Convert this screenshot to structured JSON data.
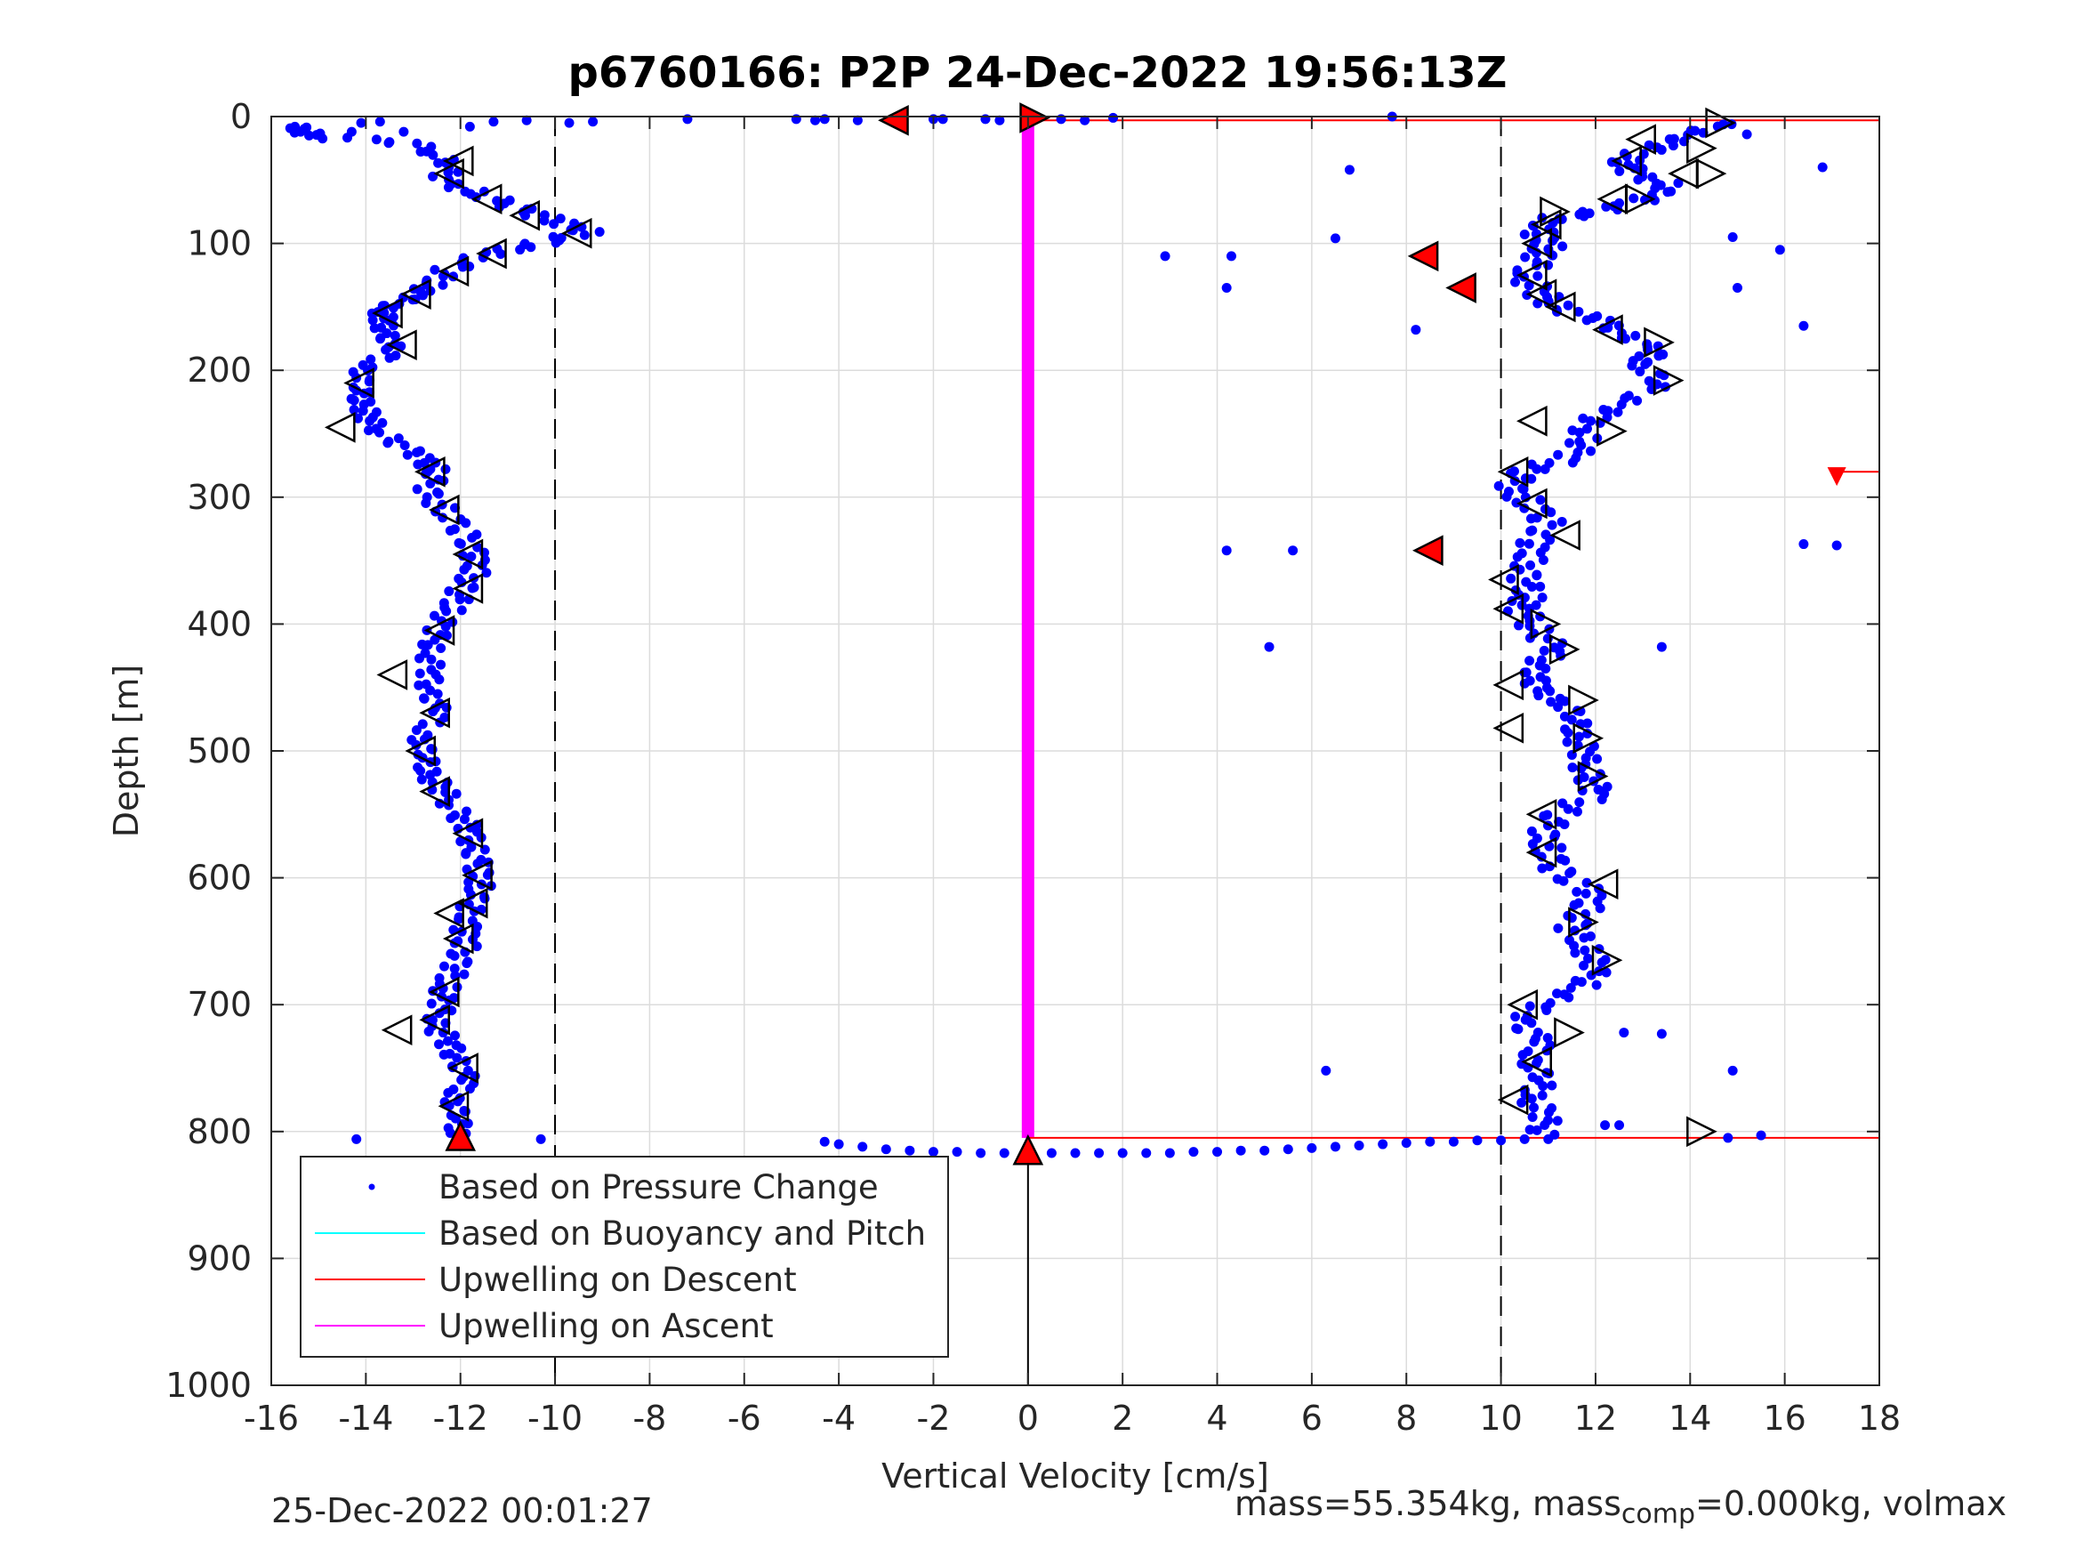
{
  "figure": {
    "title": "p6760166: P2P 24-Dec-2022 19:56:13Z",
    "footer_left": "25-Dec-2022 00:01:27",
    "footer_right": {
      "part1": "mass=55.354kg, mass",
      "sub": "comp",
      "part2": "=0.000kg, volmax"
    }
  },
  "chart_data": {
    "type": "scatter",
    "xlabel": "Vertical Velocity [cm/s]",
    "ylabel": "Depth [m]",
    "xlim": [
      -16,
      18
    ],
    "ylim": [
      0,
      1000
    ],
    "y_reversed": true,
    "xticks": [
      -16,
      -14,
      -12,
      -10,
      -8,
      -6,
      -4,
      -2,
      0,
      2,
      4,
      6,
      8,
      10,
      12,
      14,
      16,
      18
    ],
    "yticks": [
      0,
      100,
      200,
      300,
      400,
      500,
      600,
      700,
      800,
      900,
      1000
    ],
    "grid": true,
    "legend_position": "bottom-left",
    "legend": [
      {
        "label": "Based on Pressure Change",
        "color": "#0000ff",
        "style": "dot"
      },
      {
        "label": "Based on Buoyancy and Pitch",
        "color": "#00ffff",
        "style": "line"
      },
      {
        "label": "Upwelling on Descent",
        "color": "#ff0000",
        "style": "line"
      },
      {
        "label": "Upwelling on Ascent",
        "color": "#ff00ff",
        "style": "line"
      }
    ],
    "reference_lines": {
      "dashed_vertical_x": [
        -10,
        10
      ],
      "solid_vertical": {
        "x": 0,
        "y": [
          805,
          1000
        ]
      }
    },
    "series": [
      {
        "name": "Based on Pressure Change",
        "color": "#0000ff",
        "descent_profile": [
          [
            -15.6,
            8
          ],
          [
            -15,
            15
          ],
          [
            -13,
            22
          ],
          [
            -12.2,
            35
          ],
          [
            -12.4,
            50
          ],
          [
            -11.6,
            62
          ],
          [
            -10.8,
            72
          ],
          [
            -10,
            82
          ],
          [
            -9.3,
            92
          ],
          [
            -10.4,
            100
          ],
          [
            -11.4,
            108
          ],
          [
            -12.3,
            122
          ],
          [
            -12.6,
            132
          ],
          [
            -13,
            142
          ],
          [
            -13.6,
            152
          ],
          [
            -13.7,
            160
          ],
          [
            -13.5,
            172
          ],
          [
            -13.5,
            185
          ],
          [
            -14,
            200
          ],
          [
            -14.2,
            215
          ],
          [
            -14,
            228
          ],
          [
            -14,
            240
          ],
          [
            -13.4,
            255
          ],
          [
            -12.8,
            270
          ],
          [
            -12.5,
            280
          ],
          [
            -12.7,
            295
          ],
          [
            -12.3,
            312
          ],
          [
            -11.9,
            330
          ],
          [
            -11.7,
            345
          ],
          [
            -11.7,
            360
          ],
          [
            -12,
            375
          ],
          [
            -12.2,
            388
          ],
          [
            -12.5,
            405
          ],
          [
            -12.6,
            420
          ],
          [
            -12.7,
            438
          ],
          [
            -12.6,
            455
          ],
          [
            -12.5,
            470
          ],
          [
            -12.8,
            490
          ],
          [
            -12.8,
            505
          ],
          [
            -12.6,
            520
          ],
          [
            -12.4,
            532
          ],
          [
            -12,
            550
          ],
          [
            -11.8,
            565
          ],
          [
            -11.7,
            580
          ],
          [
            -11.6,
            595
          ],
          [
            -11.6,
            610
          ],
          [
            -11.8,
            625
          ],
          [
            -11.9,
            640
          ],
          [
            -11.9,
            655
          ],
          [
            -12.1,
            670
          ],
          [
            -12.3,
            685
          ],
          [
            -12.4,
            700
          ],
          [
            -12.5,
            715
          ],
          [
            -12.3,
            730
          ],
          [
            -12,
            745
          ],
          [
            -11.9,
            760
          ],
          [
            -12.1,
            775
          ],
          [
            -12.1,
            790
          ],
          [
            -12,
            805
          ]
        ],
        "ascent_profile": [
          [
            14.7,
            5
          ],
          [
            14,
            15
          ],
          [
            13.2,
            25
          ],
          [
            12.6,
            35
          ],
          [
            12.8,
            45
          ],
          [
            13.6,
            55
          ],
          [
            13,
            65
          ],
          [
            12,
            75
          ],
          [
            11,
            82
          ],
          [
            10.8,
            92
          ],
          [
            11,
            102
          ],
          [
            10.8,
            112
          ],
          [
            10.5,
            125
          ],
          [
            10.8,
            140
          ],
          [
            11.2,
            150
          ],
          [
            12,
            160
          ],
          [
            12.7,
            172
          ],
          [
            13.2,
            185
          ],
          [
            13,
            195
          ],
          [
            13.3,
            210
          ],
          [
            12.6,
            228
          ],
          [
            11.8,
            240
          ],
          [
            11.8,
            255
          ],
          [
            11.4,
            270
          ],
          [
            10.5,
            280
          ],
          [
            10.2,
            292
          ],
          [
            10.6,
            305
          ],
          [
            11,
            320
          ],
          [
            10.7,
            335
          ],
          [
            10.6,
            350
          ],
          [
            10.5,
            365
          ],
          [
            10.6,
            378
          ],
          [
            10.4,
            390
          ],
          [
            10.8,
            405
          ],
          [
            11.1,
            420
          ],
          [
            10.8,
            435
          ],
          [
            10.6,
            448
          ],
          [
            11.3,
            460
          ],
          [
            11.5,
            475
          ],
          [
            11.7,
            490
          ],
          [
            11.7,
            505
          ],
          [
            11.9,
            520
          ],
          [
            12,
            535
          ],
          [
            11.2,
            550
          ],
          [
            10.9,
            565
          ],
          [
            11,
            580
          ],
          [
            11.2,
            595
          ],
          [
            11.9,
            610
          ],
          [
            11.8,
            625
          ],
          [
            11.5,
            640
          ],
          [
            11.8,
            655
          ],
          [
            12,
            670
          ],
          [
            11.8,
            685
          ],
          [
            10.8,
            700
          ],
          [
            10.5,
            715
          ],
          [
            10.8,
            730
          ],
          [
            10.7,
            745
          ],
          [
            10.8,
            760
          ],
          [
            10.7,
            775
          ],
          [
            10.9,
            790
          ],
          [
            10.9,
            805
          ]
        ],
        "surface_points": [
          [
            -15.5,
            8
          ],
          [
            -15.2,
            15
          ],
          [
            -14.3,
            12
          ],
          [
            -14.1,
            5
          ],
          [
            -13.7,
            4
          ],
          [
            -13.2,
            12
          ],
          [
            -11.8,
            8
          ],
          [
            -11.3,
            4
          ],
          [
            -10.6,
            3
          ],
          [
            -9.7,
            5
          ],
          [
            -9.2,
            4
          ],
          [
            -7.2,
            2
          ],
          [
            -4.9,
            2
          ],
          [
            -4.5,
            3
          ],
          [
            -4.3,
            2
          ],
          [
            -3.6,
            3
          ],
          [
            -2,
            2
          ],
          [
            -1.8,
            2
          ],
          [
            -0.9,
            2
          ],
          [
            -0.6,
            3
          ],
          [
            0.7,
            2
          ],
          [
            1.2,
            3
          ],
          [
            1.8,
            1
          ],
          [
            7.7,
            0
          ],
          [
            8.3,
            110
          ],
          [
            9.3,
            132
          ],
          [
            8.5,
            342
          ],
          [
            2.9,
            110
          ],
          [
            4.3,
            110
          ],
          [
            4.2,
            135
          ],
          [
            6.5,
            96
          ],
          [
            6.8,
            42
          ],
          [
            4.2,
            342
          ],
          [
            5.6,
            342
          ],
          [
            5.1,
            418
          ],
          [
            6.3,
            752
          ],
          [
            8.2,
            168
          ],
          [
            14.9,
            95
          ],
          [
            15,
            135
          ],
          [
            15.9,
            105
          ],
          [
            16.4,
            165
          ],
          [
            16.8,
            40
          ],
          [
            16.4,
            337
          ],
          [
            17.1,
            338
          ],
          [
            13.4,
            418
          ],
          [
            14.9,
            752
          ],
          [
            15.2,
            14
          ],
          [
            13.4,
            723
          ],
          [
            12.6,
            722
          ],
          [
            12.2,
            795
          ],
          [
            12.5,
            795
          ],
          [
            14.8,
            805
          ],
          [
            15.5,
            803
          ],
          [
            -14.2,
            806
          ],
          [
            -10.3,
            806
          ]
        ],
        "bottom_turn_points": [
          [
            -4.3,
            808
          ],
          [
            -4,
            810
          ],
          [
            -3.5,
            812
          ],
          [
            -3,
            814
          ],
          [
            -2.5,
            815
          ],
          [
            -2,
            816
          ],
          [
            -1.5,
            816
          ],
          [
            -1,
            817
          ],
          [
            -0.5,
            817
          ],
          [
            0,
            817
          ],
          [
            0.5,
            817
          ],
          [
            1,
            817
          ],
          [
            1.5,
            817
          ],
          [
            2,
            817
          ],
          [
            2.5,
            817
          ],
          [
            3,
            817
          ],
          [
            3.5,
            816
          ],
          [
            4,
            816
          ],
          [
            4.5,
            815
          ],
          [
            5,
            815
          ],
          [
            5.5,
            814
          ],
          [
            6,
            813
          ],
          [
            6.5,
            812
          ],
          [
            7,
            811
          ],
          [
            7.5,
            810
          ],
          [
            8,
            809
          ],
          [
            8.5,
            808
          ],
          [
            9,
            808
          ],
          [
            9.5,
            807
          ],
          [
            10,
            807
          ],
          [
            10.5,
            806
          ],
          [
            11,
            806
          ]
        ]
      },
      {
        "name": "Upwelling on Descent",
        "color": "#ff0000",
        "segments": [
          {
            "x": [
              0,
              18
            ],
            "y": 3
          },
          {
            "x": [
              0,
              18
            ],
            "y": 805
          },
          {
            "x": [
              17.1,
              18
            ],
            "y": 280
          }
        ]
      },
      {
        "name": "Upwelling on Ascent",
        "color": "#ff00ff",
        "segments": [
          {
            "x": [
              0,
              0
            ],
            "y_from": 3,
            "y_to": 805
          }
        ]
      }
    ],
    "markers": {
      "open_left_triangles": [
        [
          -12,
          35
        ],
        [
          -12.2,
          45
        ],
        [
          -11.4,
          65
        ],
        [
          -10.6,
          78
        ],
        [
          -9.5,
          92
        ],
        [
          -11.3,
          108
        ],
        [
          -12.1,
          122
        ],
        [
          -12.9,
          140
        ],
        [
          -13.5,
          155
        ],
        [
          -13.2,
          180
        ],
        [
          -14.1,
          210
        ],
        [
          -14.5,
          245
        ],
        [
          -12.6,
          280
        ],
        [
          -12.3,
          310
        ],
        [
          -11.8,
          345
        ],
        [
          -11.8,
          372
        ],
        [
          -12.4,
          405
        ],
        [
          -13.4,
          440
        ],
        [
          -12.5,
          470
        ],
        [
          -12.8,
          500
        ],
        [
          -12.5,
          532
        ],
        [
          -11.8,
          565
        ],
        [
          -11.6,
          598
        ],
        [
          -12.2,
          628
        ],
        [
          -11.7,
          620
        ],
        [
          -12,
          648
        ],
        [
          -12.3,
          690
        ],
        [
          -12.5,
          712
        ],
        [
          -13.3,
          720
        ],
        [
          -11.9,
          750
        ],
        [
          -12.1,
          780
        ],
        [
          13,
          18
        ],
        [
          12.7,
          35
        ],
        [
          13.9,
          45
        ],
        [
          12.4,
          65
        ],
        [
          11,
          85
        ],
        [
          10.8,
          100
        ],
        [
          10.7,
          125
        ],
        [
          10.9,
          140
        ],
        [
          11.3,
          150
        ],
        [
          12.3,
          168
        ],
        [
          10.7,
          240
        ],
        [
          10.3,
          280
        ],
        [
          10.7,
          305
        ],
        [
          11.4,
          330
        ],
        [
          10.1,
          365
        ],
        [
          10.2,
          388
        ],
        [
          10.2,
          448
        ],
        [
          10.2,
          482
        ],
        [
          10.9,
          550
        ],
        [
          10.9,
          580
        ],
        [
          12.2,
          605
        ],
        [
          10.5,
          700
        ],
        [
          10.8,
          745
        ],
        [
          10.3,
          775
        ]
      ],
      "open_right_triangles": [
        [
          14.6,
          5
        ],
        [
          14.2,
          25
        ],
        [
          14.4,
          45
        ],
        [
          12.9,
          65
        ],
        [
          11.1,
          75
        ],
        [
          13.3,
          178
        ],
        [
          13.5,
          208
        ],
        [
          12.3,
          248
        ],
        [
          10.9,
          400
        ],
        [
          11.3,
          420
        ],
        [
          11.7,
          460
        ],
        [
          11.8,
          490
        ],
        [
          11.9,
          520
        ],
        [
          11.7,
          635
        ],
        [
          12.2,
          665
        ],
        [
          11.4,
          722
        ],
        [
          14.2,
          800
        ]
      ],
      "filled_left_triangles": [
        [
          -2.8,
          3
        ],
        [
          8.4,
          110
        ],
        [
          9.2,
          135
        ],
        [
          8.5,
          342
        ]
      ],
      "filled_right_triangles": [
        [
          0.1,
          1
        ]
      ],
      "filled_up_triangles": [
        [
          -12,
          805
        ],
        [
          0,
          816
        ]
      ],
      "filled_down_triangles": [
        [
          17.1,
          282
        ]
      ]
    }
  }
}
